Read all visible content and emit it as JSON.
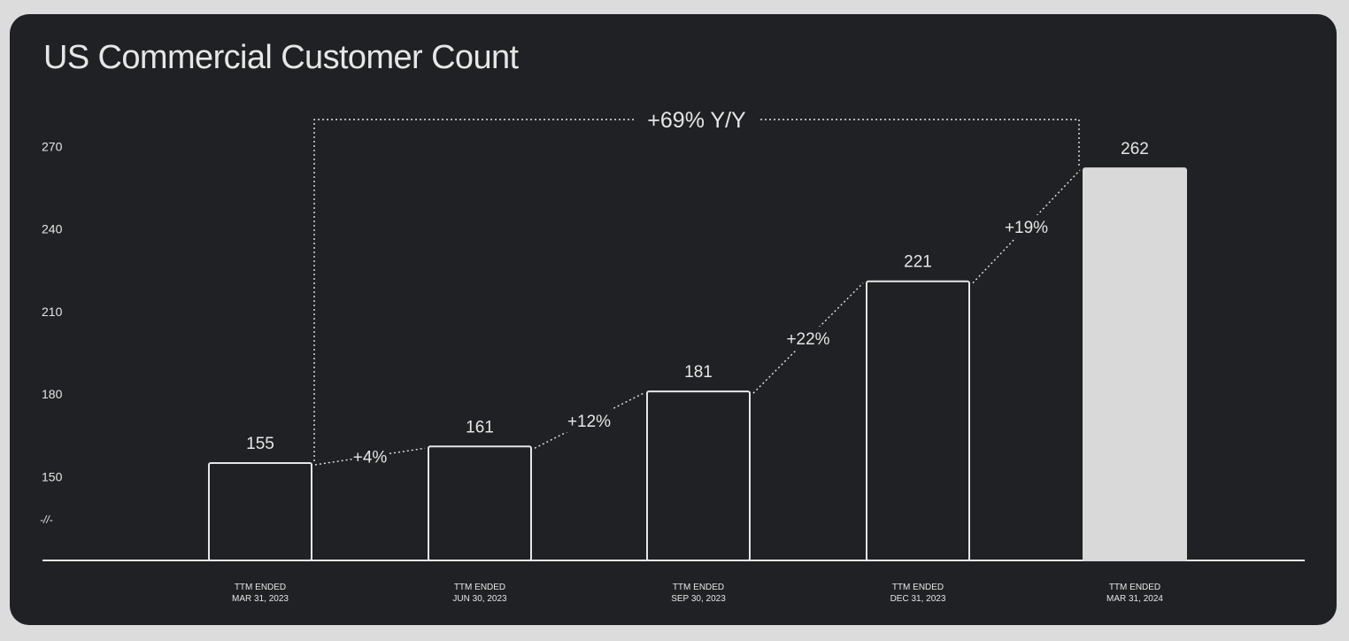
{
  "title": "US Commercial Customer Count",
  "colors": {
    "background": "#1f2124",
    "foreground": "#e6e6e6",
    "highlight_bar": "#d9d9d9",
    "page": "#dcdcdc"
  },
  "chart_data": {
    "type": "bar",
    "title": "US Commercial Customer Count",
    "xlabel": "",
    "ylabel": "",
    "y_ticks": [
      "270",
      "240",
      "210",
      "180",
      "150"
    ],
    "axis_break_symbol": "-//-",
    "categories": [
      [
        "TTM ENDED",
        "MAR 31, 2023"
      ],
      [
        "TTM ENDED",
        "JUN 30, 2023"
      ],
      [
        "TTM ENDED",
        "SEP 30, 2023"
      ],
      [
        "TTM ENDED",
        "DEC 31, 2023"
      ],
      [
        "TTM ENDED",
        "MAR 31, 2024"
      ]
    ],
    "values": [
      155,
      161,
      181,
      221,
      262
    ],
    "value_labels": [
      "155",
      "161",
      "181",
      "221",
      "262"
    ],
    "highlighted_index": 4,
    "growth_labels": [
      "+4%",
      "+12%",
      "+22%",
      "+19%"
    ],
    "yoy_label": "+69% Y/Y",
    "grid": false,
    "legend": "none"
  }
}
